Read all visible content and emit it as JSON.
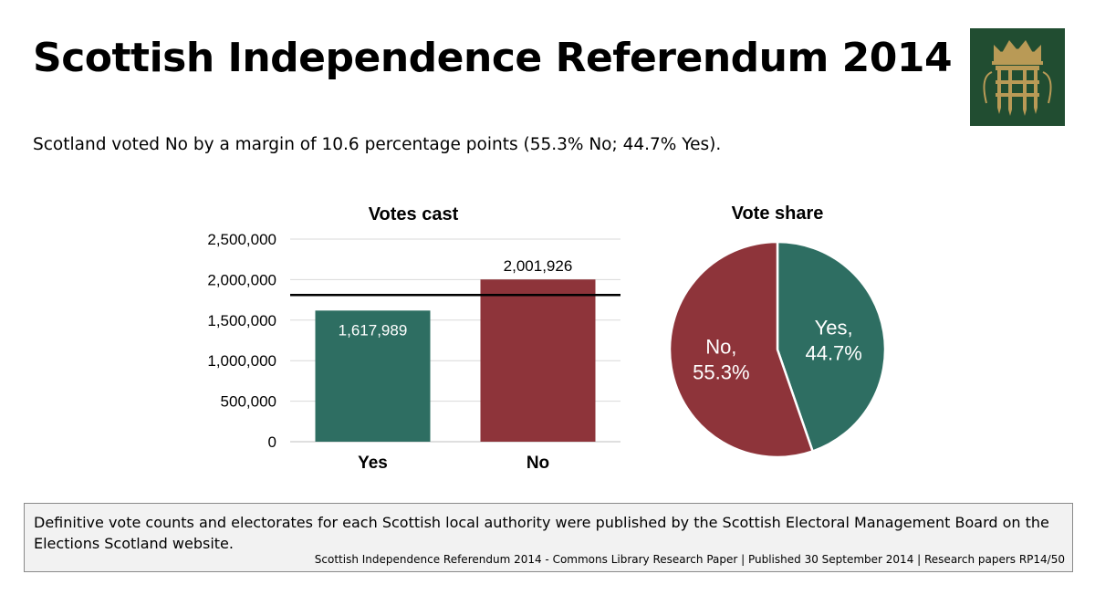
{
  "header": {
    "title": "Scottish Independence Referendum 2014",
    "logo_icon": "portcullis-icon"
  },
  "summary": "Scotland voted No by a margin of 10.6 percentage points (55.3% No; 44.7% Yes).",
  "footer": {
    "note": "Definitive vote counts and electorates for each Scottish local authority were published by the Scottish Electoral Management Board on the Elections Scotland website.",
    "source": "Scottish Independence Referendum 2014 - Commons Library Research Paper | Published 30 September 2014 | Research papers RP14/50"
  },
  "colors": {
    "yes": "#2e6e62",
    "no": "#8e343a",
    "logo_bg": "#214d31",
    "logo_gold": "#b99a56"
  },
  "chart_data": [
    {
      "type": "bar",
      "title": "Votes cast",
      "categories": [
        "Yes",
        "No"
      ],
      "values": [
        1617989,
        2001926
      ],
      "value_labels": [
        "1,617,989",
        "2,001,926"
      ],
      "ylim": [
        0,
        2500000
      ],
      "yticks": [
        0,
        500000,
        1000000,
        1500000,
        2000000,
        2500000
      ],
      "ytick_labels": [
        "0",
        "500,000",
        "1,000,000",
        "1,500,000",
        "2,000,000",
        "2,500,000"
      ],
      "reference_line": 1809958,
      "grid": true,
      "xlabel": "",
      "ylabel": ""
    },
    {
      "type": "pie",
      "title": "Vote share",
      "slices": [
        {
          "name": "Yes",
          "value": 44.7,
          "label_line1": "Yes,",
          "label_line2": "44.7%"
        },
        {
          "name": "No",
          "value": 55.3,
          "label_line1": "No,",
          "label_line2": "55.3%"
        }
      ]
    }
  ]
}
